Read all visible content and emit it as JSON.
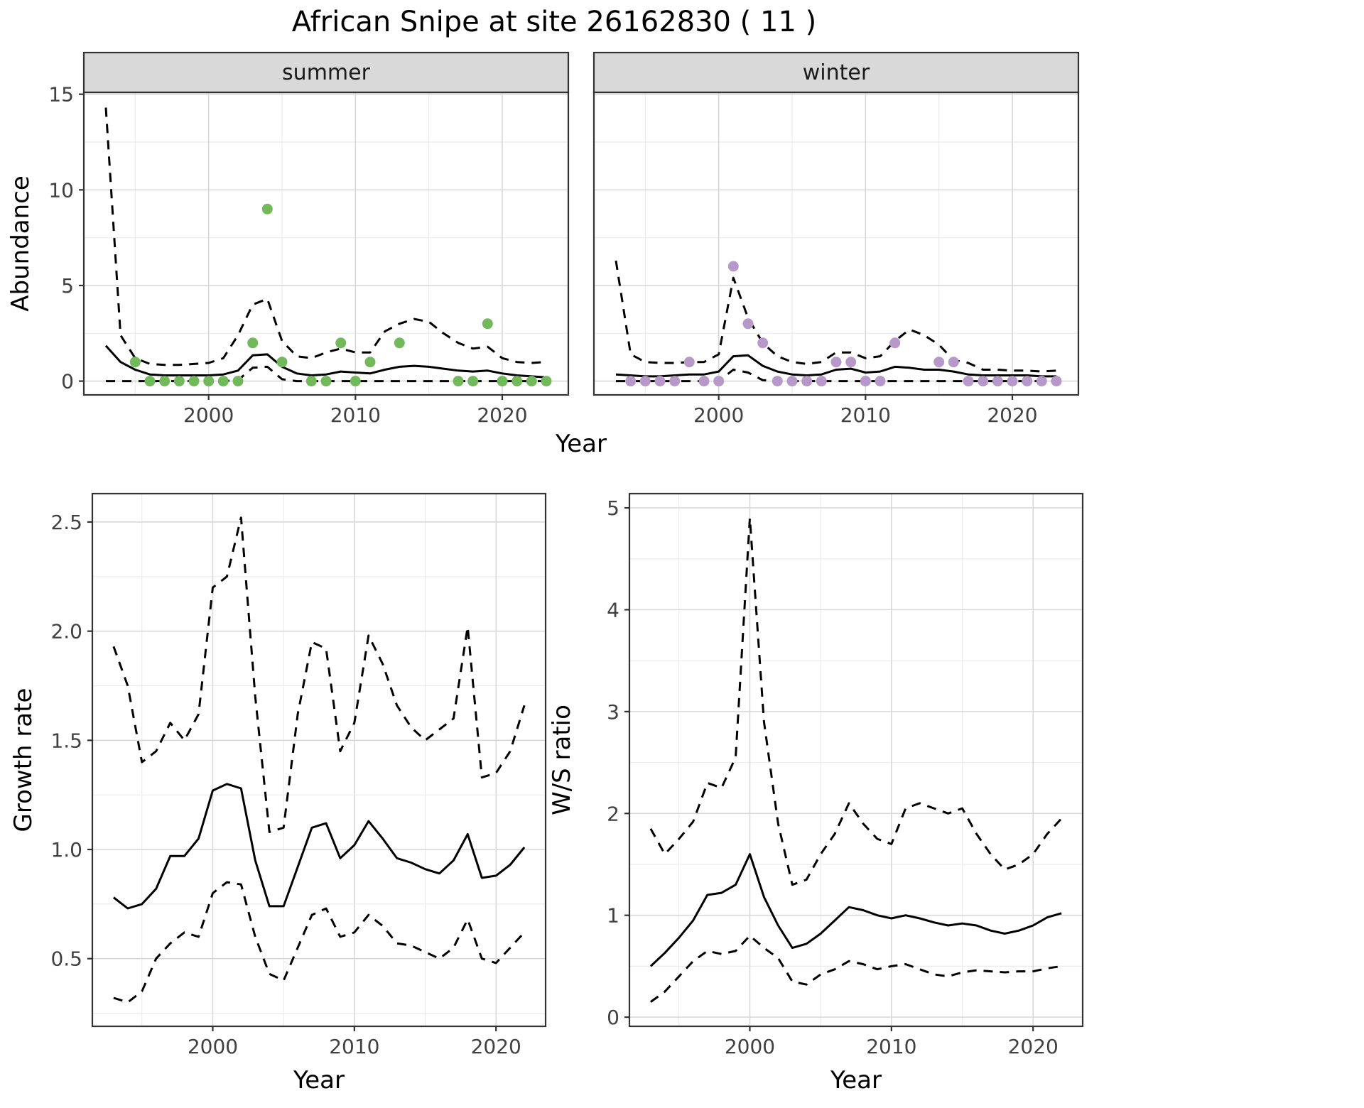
{
  "title": "African Snipe at site 26162830 ( 11 )",
  "colors": {
    "summer_point": "#72b95c",
    "winter_point": "#b698c9",
    "line": "#000000",
    "strip_bg": "#d9d9d9",
    "grid_major": "#d9d9d9",
    "grid_minor": "#ebebeb",
    "panel_border": "#333333",
    "tick": "#333333"
  },
  "chart_data": [
    {
      "id": "abundance_summer",
      "type": "scatter",
      "facet_label": "summer",
      "xlabel": "Year",
      "ylabel": "Abundance",
      "xlim": [
        1991.5,
        2024.5
      ],
      "ylim": [
        -0.72,
        15.1
      ],
      "xticks": [
        2000,
        2010,
        2020
      ],
      "xtick_labels": [
        "2000",
        "2010",
        "2020"
      ],
      "xticks_minor": [
        1995,
        2005,
        2015
      ],
      "yticks": [
        0,
        5,
        10,
        15
      ],
      "ytick_labels": [
        "0",
        "5",
        "10",
        "15"
      ],
      "yticks_minor": [
        2.5,
        7.5,
        12.5
      ],
      "point_color": "#72b95c",
      "years": [
        1993,
        1994,
        1995,
        1996,
        1997,
        1998,
        1999,
        2000,
        2001,
        2002,
        2003,
        2004,
        2005,
        2006,
        2007,
        2008,
        2009,
        2010,
        2011,
        2012,
        2013,
        2014,
        2015,
        2016,
        2017,
        2018,
        2019,
        2020,
        2021,
        2022,
        2023
      ],
      "points": {
        "years": [
          1995,
          1996,
          1997,
          1998,
          1999,
          2000,
          2001,
          2002,
          2003,
          2004,
          2005,
          2007,
          2008,
          2009,
          2010,
          2011,
          2013,
          2017,
          2018,
          2019,
          2020,
          2021,
          2022,
          2023
        ],
        "counts": [
          1,
          0,
          0,
          0,
          0,
          0,
          0,
          0,
          2,
          9,
          1,
          0,
          0,
          2,
          0,
          1,
          2,
          0,
          0,
          3,
          0,
          0,
          0,
          0
        ]
      },
      "series": [
        {
          "name": "mean",
          "style": "solid",
          "values": [
            1.85,
            1.0,
            0.6,
            0.35,
            0.3,
            0.3,
            0.3,
            0.3,
            0.35,
            0.55,
            1.35,
            1.4,
            0.75,
            0.4,
            0.3,
            0.35,
            0.5,
            0.45,
            0.4,
            0.6,
            0.75,
            0.8,
            0.75,
            0.65,
            0.55,
            0.5,
            0.55,
            0.4,
            0.3,
            0.25,
            0.2
          ]
        },
        {
          "name": "upper_ci",
          "style": "dashed",
          "values": [
            14.3,
            2.4,
            1.2,
            0.9,
            0.85,
            0.85,
            0.9,
            0.95,
            1.2,
            2.4,
            4.0,
            4.3,
            2.1,
            1.3,
            1.2,
            1.5,
            1.7,
            1.5,
            1.5,
            2.6,
            3.0,
            3.25,
            3.1,
            2.5,
            2.0,
            1.7,
            1.8,
            1.2,
            1.0,
            0.95,
            1.0
          ]
        },
        {
          "name": "lower_ci",
          "style": "dashed",
          "values": [
            0,
            0,
            0,
            0,
            0,
            0,
            0,
            0,
            0,
            0.05,
            0.7,
            0.75,
            0.1,
            0,
            0,
            0,
            0,
            0,
            0,
            0,
            0,
            0,
            0,
            0,
            0,
            0,
            0,
            0,
            0,
            0,
            0
          ]
        }
      ]
    },
    {
      "id": "abundance_winter",
      "type": "scatter",
      "facet_label": "winter",
      "xlabel": "Year",
      "ylabel": "Abundance",
      "xlim": [
        1991.5,
        2024.5
      ],
      "ylim": [
        -0.72,
        15.1
      ],
      "xticks": [
        2000,
        2010,
        2020
      ],
      "xtick_labels": [
        "2000",
        "2010",
        "2020"
      ],
      "xticks_minor": [
        1995,
        2005,
        2015
      ],
      "yticks": [
        0,
        5,
        10,
        15
      ],
      "ytick_labels": [
        "0",
        "5",
        "10",
        "15"
      ],
      "yticks_minor": [
        2.5,
        7.5,
        12.5
      ],
      "point_color": "#b698c9",
      "years": [
        1993,
        1994,
        1995,
        1996,
        1997,
        1998,
        1999,
        2000,
        2001,
        2002,
        2003,
        2004,
        2005,
        2006,
        2007,
        2008,
        2009,
        2010,
        2011,
        2012,
        2013,
        2014,
        2015,
        2016,
        2017,
        2018,
        2019,
        2020,
        2021,
        2022,
        2023
      ],
      "points": {
        "years": [
          1994,
          1995,
          1996,
          1997,
          1998,
          1999,
          2000,
          2001,
          2002,
          2003,
          2004,
          2005,
          2006,
          2007,
          2008,
          2009,
          2010,
          2011,
          2012,
          2015,
          2016,
          2017,
          2018,
          2019,
          2020,
          2021,
          2022,
          2023
        ],
        "counts": [
          0,
          0,
          0,
          0,
          1,
          0,
          0,
          6,
          3,
          2,
          0,
          0,
          0,
          0,
          1,
          1,
          0,
          0,
          2,
          1,
          1,
          0,
          0,
          0,
          0,
          0,
          0,
          0
        ]
      },
      "series": [
        {
          "name": "mean",
          "style": "solid",
          "values": [
            0.35,
            0.3,
            0.25,
            0.25,
            0.3,
            0.35,
            0.35,
            0.5,
            1.3,
            1.35,
            0.8,
            0.5,
            0.35,
            0.3,
            0.35,
            0.6,
            0.65,
            0.45,
            0.5,
            0.75,
            0.7,
            0.6,
            0.6,
            0.5,
            0.35,
            0.3,
            0.3,
            0.3,
            0.3,
            0.25,
            0.25
          ]
        },
        {
          "name": "upper_ci",
          "style": "dashed",
          "values": [
            6.3,
            1.4,
            1.0,
            0.95,
            0.95,
            1.0,
            1.0,
            1.4,
            5.4,
            3.3,
            2.0,
            1.3,
            1.0,
            0.9,
            1.0,
            1.5,
            1.5,
            1.2,
            1.3,
            2.1,
            2.7,
            2.4,
            1.9,
            1.1,
            0.95,
            0.6,
            0.6,
            0.55,
            0.55,
            0.5,
            0.55
          ]
        },
        {
          "name": "lower_ci",
          "style": "dashed",
          "values": [
            0,
            0,
            0,
            0,
            0,
            0,
            0,
            0,
            0.6,
            0.45,
            0.05,
            0,
            0,
            0,
            0,
            0,
            0,
            0,
            0,
            0,
            0,
            0,
            0,
            0,
            0,
            0,
            0,
            0,
            0,
            0,
            0
          ]
        }
      ]
    },
    {
      "id": "growth_rate",
      "type": "line",
      "facet_label": "",
      "xlabel": "Year",
      "ylabel": "Growth rate",
      "xlim": [
        1991.5,
        2023.5
      ],
      "ylim": [
        0.19,
        2.63
      ],
      "xticks": [
        2000,
        2010,
        2020
      ],
      "xtick_labels": [
        "2000",
        "2010",
        "2020"
      ],
      "xticks_minor": [
        1995,
        2005,
        2015
      ],
      "yticks": [
        0.5,
        1.0,
        1.5,
        2.0,
        2.5
      ],
      "ytick_labels": [
        "0.5",
        "1.0",
        "1.5",
        "2.0",
        "2.5"
      ],
      "yticks_minor": [
        0.25,
        0.75,
        1.25,
        1.75,
        2.25
      ],
      "years": [
        1993,
        1994,
        1995,
        1996,
        1997,
        1998,
        1999,
        2000,
        2001,
        2002,
        2003,
        2004,
        2005,
        2006,
        2007,
        2008,
        2009,
        2010,
        2011,
        2012,
        2013,
        2014,
        2015,
        2016,
        2017,
        2018,
        2019,
        2020,
        2021,
        2022
      ],
      "series": [
        {
          "name": "mean",
          "style": "solid",
          "values": [
            0.78,
            0.73,
            0.75,
            0.82,
            0.97,
            0.97,
            1.05,
            1.27,
            1.3,
            1.28,
            0.95,
            0.74,
            0.74,
            0.92,
            1.1,
            1.12,
            0.96,
            1.02,
            1.13,
            1.05,
            0.96,
            0.94,
            0.91,
            0.89,
            0.95,
            1.07,
            0.87,
            0.88,
            0.93,
            1.01
          ]
        },
        {
          "name": "upper_ci",
          "style": "dashed",
          "values": [
            1.93,
            1.75,
            1.4,
            1.45,
            1.58,
            1.5,
            1.62,
            2.2,
            2.25,
            2.52,
            1.7,
            1.08,
            1.1,
            1.62,
            1.95,
            1.92,
            1.45,
            1.58,
            1.98,
            1.85,
            1.66,
            1.56,
            1.5,
            1.55,
            1.6,
            2.02,
            1.33,
            1.35,
            1.45,
            1.66
          ]
        },
        {
          "name": "lower_ci",
          "style": "dashed",
          "values": [
            0.32,
            0.3,
            0.35,
            0.5,
            0.57,
            0.62,
            0.6,
            0.8,
            0.85,
            0.84,
            0.6,
            0.43,
            0.4,
            0.55,
            0.7,
            0.73,
            0.6,
            0.62,
            0.7,
            0.65,
            0.57,
            0.56,
            0.53,
            0.5,
            0.55,
            0.68,
            0.5,
            0.48,
            0.55,
            0.62
          ]
        }
      ]
    },
    {
      "id": "ws_ratio",
      "type": "line",
      "facet_label": "",
      "xlabel": "Year",
      "ylabel": "W/S ratio",
      "xlim": [
        1991.5,
        2023.5
      ],
      "ylim": [
        -0.09,
        5.14
      ],
      "xticks": [
        2000,
        2010,
        2020
      ],
      "xtick_labels": [
        "2000",
        "2010",
        "2020"
      ],
      "xticks_minor": [
        1995,
        2005,
        2015
      ],
      "yticks": [
        0,
        1,
        2,
        3,
        4,
        5
      ],
      "ytick_labels": [
        "0",
        "1",
        "2",
        "3",
        "4",
        "5"
      ],
      "yticks_minor": [
        0.5,
        1.5,
        2.5,
        3.5,
        4.5
      ],
      "years": [
        1993,
        1994,
        1995,
        1996,
        1997,
        1998,
        1999,
        2000,
        2001,
        2002,
        2003,
        2004,
        2005,
        2006,
        2007,
        2008,
        2009,
        2010,
        2011,
        2012,
        2013,
        2014,
        2015,
        2016,
        2017,
        2018,
        2019,
        2020,
        2021,
        2022
      ],
      "series": [
        {
          "name": "mean",
          "style": "solid",
          "values": [
            0.5,
            0.63,
            0.78,
            0.95,
            1.2,
            1.22,
            1.3,
            1.6,
            1.18,
            0.9,
            0.68,
            0.72,
            0.82,
            0.95,
            1.08,
            1.05,
            1.0,
            0.97,
            1.0,
            0.97,
            0.93,
            0.9,
            0.92,
            0.9,
            0.85,
            0.82,
            0.85,
            0.9,
            0.98,
            1.02
          ]
        },
        {
          "name": "upper_ci",
          "style": "dashed",
          "values": [
            1.85,
            1.6,
            1.75,
            1.92,
            2.3,
            2.25,
            2.55,
            4.9,
            2.9,
            1.9,
            1.3,
            1.35,
            1.6,
            1.8,
            2.1,
            1.9,
            1.75,
            1.7,
            2.05,
            2.1,
            2.05,
            2.0,
            2.05,
            1.8,
            1.6,
            1.45,
            1.5,
            1.6,
            1.8,
            1.95
          ]
        },
        {
          "name": "lower_ci",
          "style": "dashed",
          "values": [
            0.15,
            0.25,
            0.4,
            0.55,
            0.65,
            0.62,
            0.65,
            0.8,
            0.68,
            0.58,
            0.35,
            0.32,
            0.42,
            0.47,
            0.55,
            0.52,
            0.47,
            0.5,
            0.52,
            0.47,
            0.42,
            0.4,
            0.44,
            0.46,
            0.45,
            0.44,
            0.45,
            0.45,
            0.48,
            0.5
          ]
        }
      ]
    }
  ]
}
